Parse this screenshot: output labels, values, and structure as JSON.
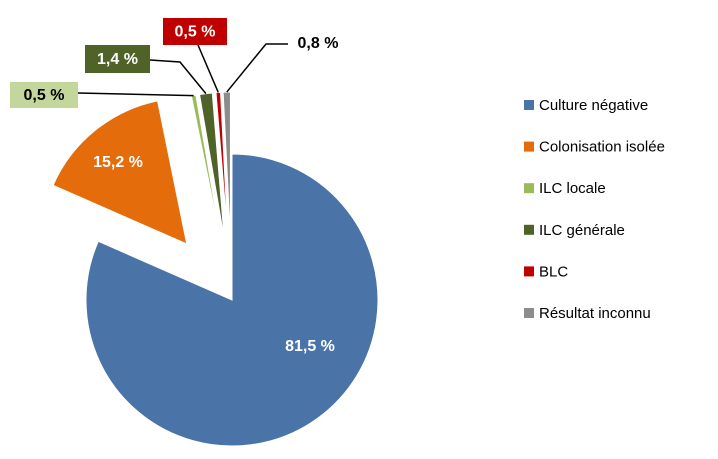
{
  "chart_data": {
    "type": "pie",
    "categories": [
      "Culture négative",
      "Colonisation isolée",
      "ILC locale",
      "ILC générale",
      "BLC",
      "Résultat inconnu"
    ],
    "values": [
      81.5,
      15.2,
      0.5,
      1.4,
      0.5,
      0.8
    ],
    "value_labels": [
      "81,5 %",
      "15,2 %",
      "0,5 %",
      "1,4 %",
      "0,5 %",
      "0,8 %"
    ],
    "colors": [
      "#4a73a8",
      "#e46c0a",
      "#9bbb59",
      "#4f6228",
      "#c00000",
      "#8c8c8c"
    ],
    "legend": "right"
  }
}
